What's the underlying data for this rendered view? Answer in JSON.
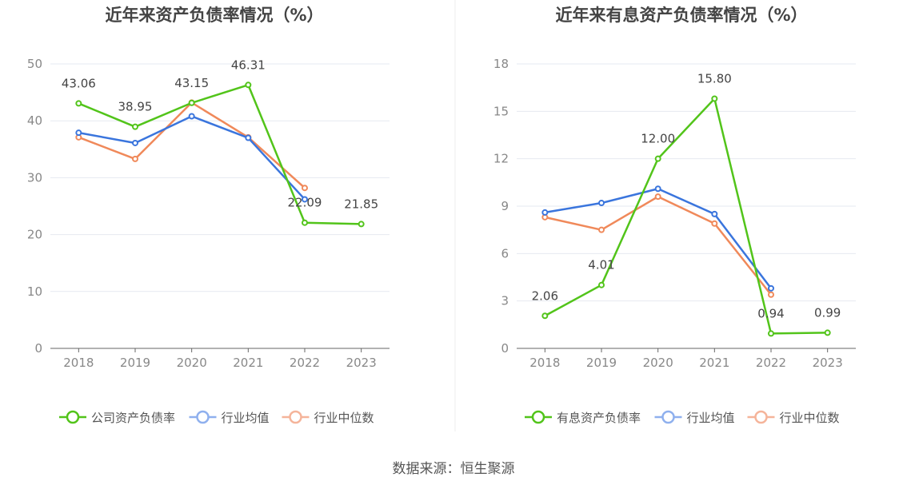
{
  "source": "数据来源：恒生聚源",
  "chart_data": [
    {
      "type": "line",
      "title": "近年来资产负债率情况（%）",
      "categories": [
        "2018",
        "2019",
        "2020",
        "2021",
        "2022",
        "2023"
      ],
      "ylim": [
        0,
        50
      ],
      "yticks": [
        0,
        10,
        20,
        30,
        40,
        50
      ],
      "grid": true,
      "legend_position": "bottom",
      "series": [
        {
          "name": "公司资产负债率",
          "color": "#52c41a",
          "values": [
            43.06,
            38.95,
            43.15,
            46.31,
            22.09,
            21.85
          ],
          "labels": [
            "43.06",
            "38.95",
            "43.15",
            "46.31",
            "22.09",
            "21.85"
          ]
        },
        {
          "name": "行业均值",
          "color": "#3a75dd",
          "values": [
            37.9,
            36.1,
            40.8,
            37.0,
            26.2,
            null
          ],
          "labels": null
        },
        {
          "name": "行业中位数",
          "color": "#f0895a",
          "values": [
            37.1,
            33.3,
            43.2,
            37.1,
            28.2,
            null
          ],
          "labels": null
        }
      ]
    },
    {
      "type": "line",
      "title": "近年来有息资产负债率情况（%）",
      "categories": [
        "2018",
        "2019",
        "2020",
        "2021",
        "2022",
        "2023"
      ],
      "ylim": [
        0,
        18
      ],
      "yticks": [
        0,
        3,
        6,
        9,
        12,
        15,
        18
      ],
      "grid": true,
      "legend_position": "bottom",
      "series": [
        {
          "name": "有息资产负债率",
          "color": "#52c41a",
          "values": [
            2.06,
            4.01,
            12.0,
            15.8,
            0.94,
            0.99
          ],
          "labels": [
            "2.06",
            "4.01",
            "12.00",
            "15.80",
            "0.94",
            "0.99"
          ]
        },
        {
          "name": "行业均值",
          "color": "#3a75dd",
          "values": [
            8.6,
            9.2,
            10.1,
            8.5,
            3.8,
            null
          ],
          "labels": null
        },
        {
          "name": "行业中位数",
          "color": "#f0895a",
          "values": [
            8.3,
            7.5,
            9.6,
            7.9,
            3.4,
            null
          ],
          "labels": null
        }
      ]
    }
  ]
}
